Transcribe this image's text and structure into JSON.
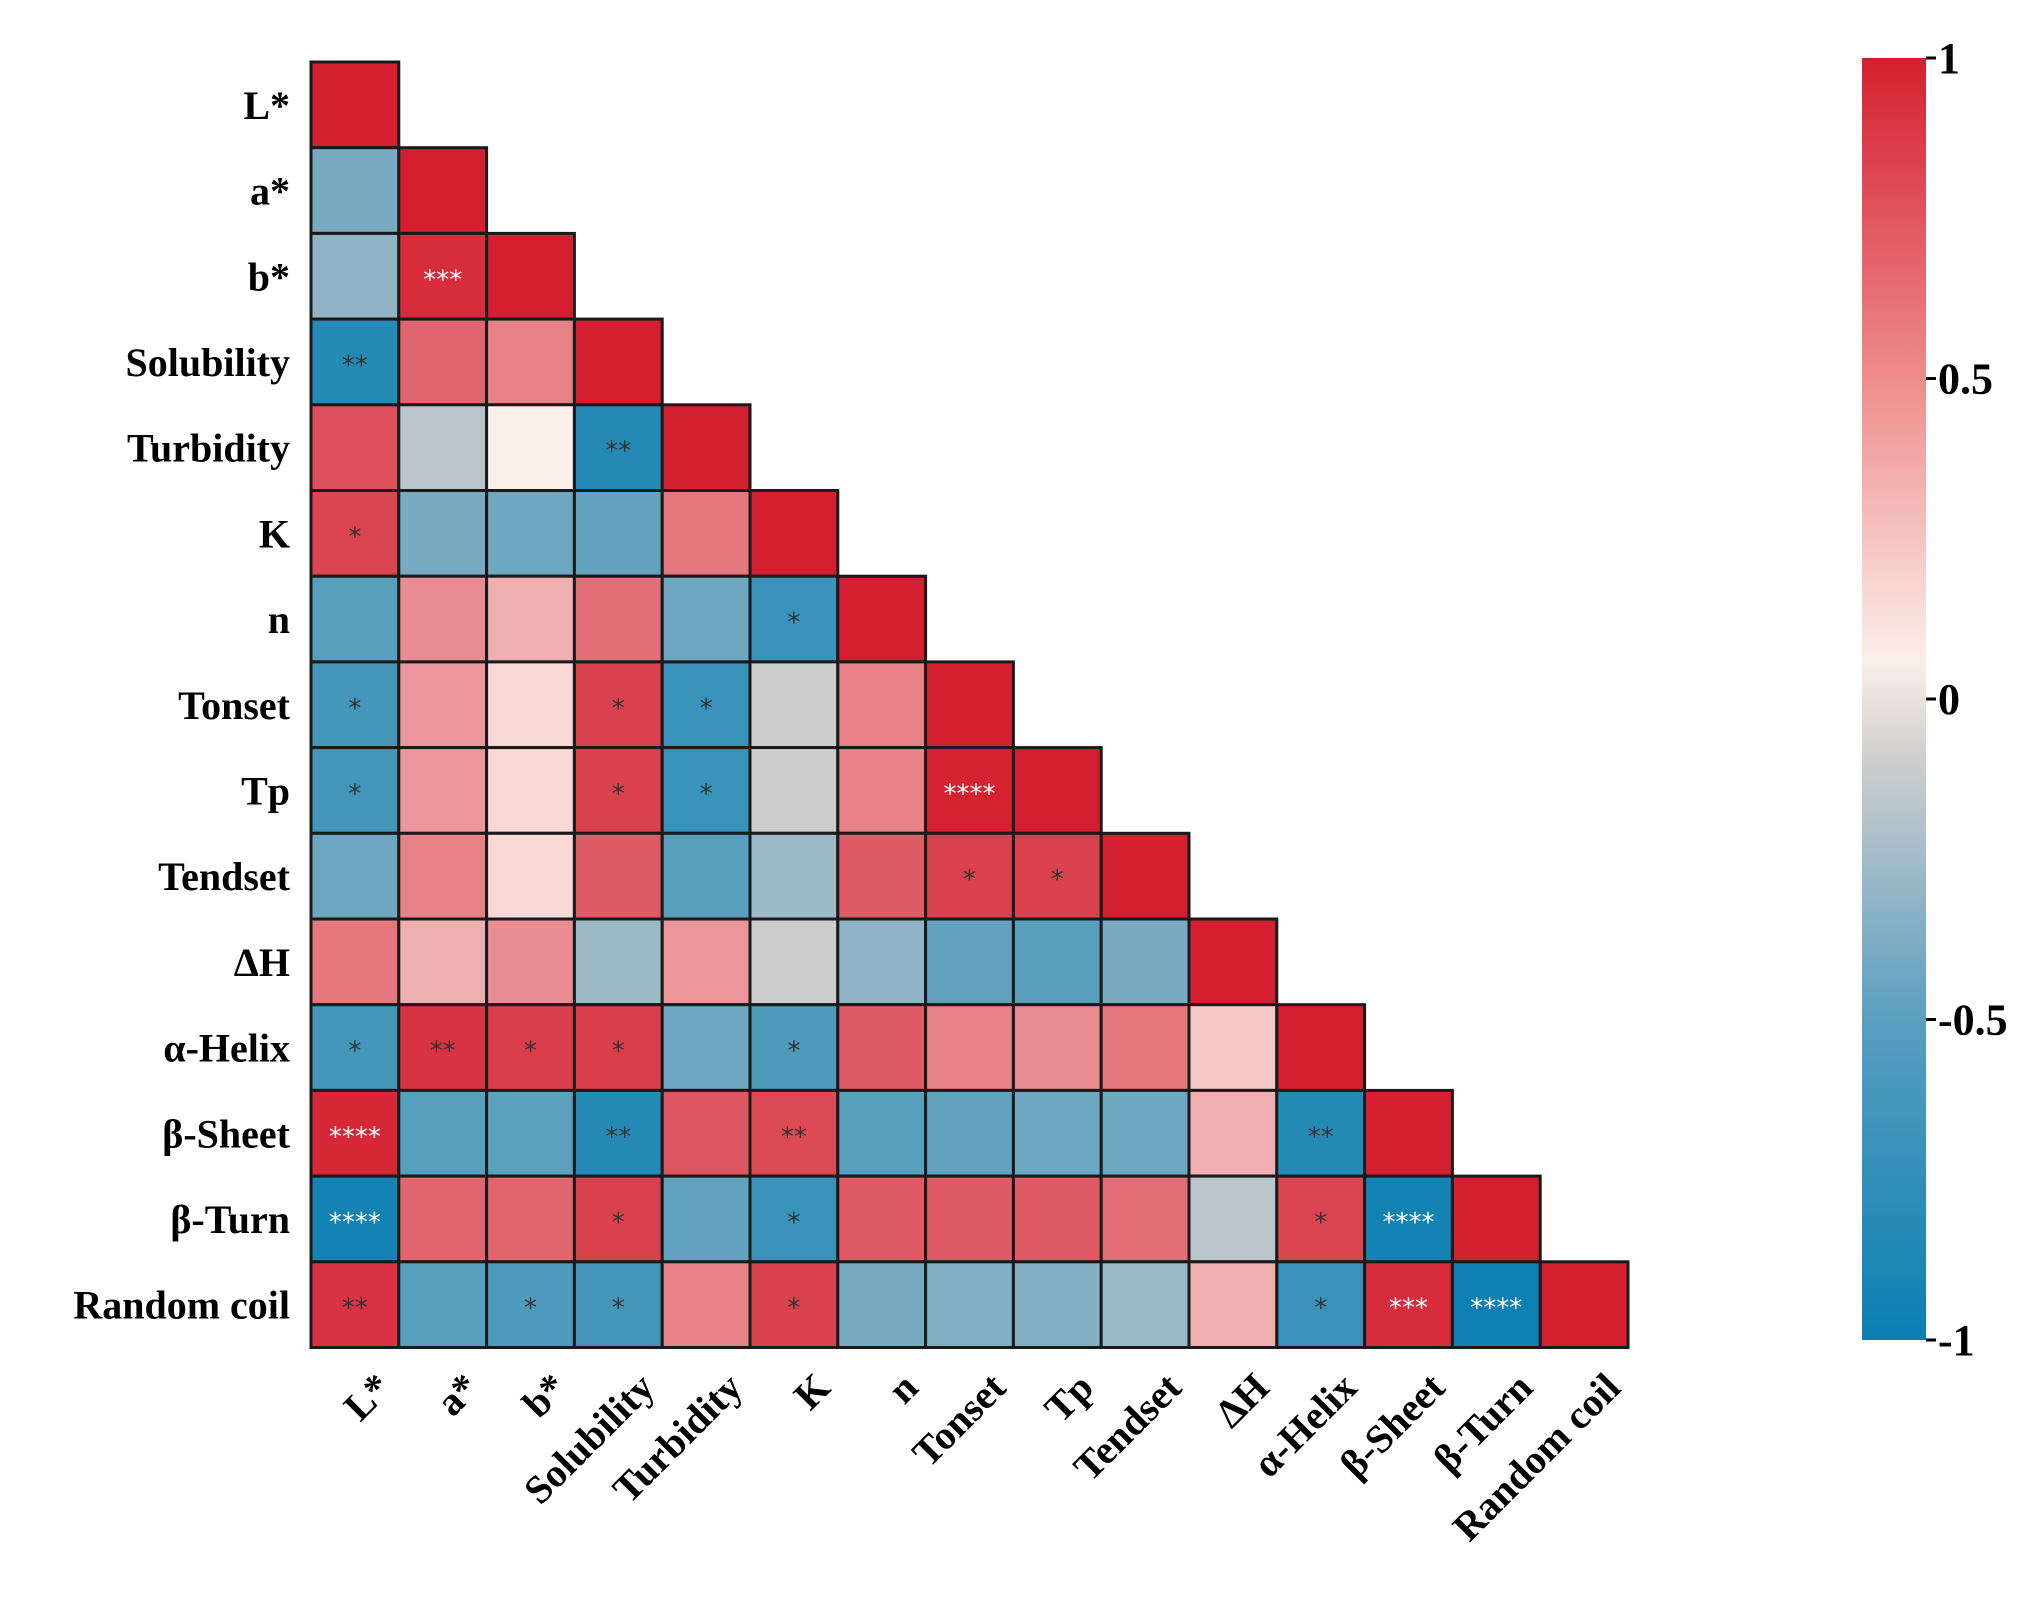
{
  "chart_data": {
    "type": "heatmap",
    "variables": [
      "L*",
      "a*",
      "b*",
      "Solubility",
      "Turbidity",
      "K",
      "n",
      "Tonset",
      "Tp",
      "Tendset",
      "ΔH",
      "α-Helix",
      "β-Sheet",
      "β-Turn",
      "Random coil"
    ],
    "values": [
      [
        1.0
      ],
      [
        -0.45,
        1.0
      ],
      [
        -0.35,
        0.92,
        1.0
      ],
      [
        -0.85,
        0.6,
        0.45,
        1.0
      ],
      [
        0.72,
        -0.2,
        0.05,
        -0.85,
        1.0
      ],
      [
        0.78,
        -0.45,
        -0.5,
        -0.55,
        0.5,
        1.0
      ],
      [
        -0.6,
        0.4,
        0.25,
        0.55,
        -0.5,
        -0.75,
        1.0
      ],
      [
        -0.7,
        0.35,
        0.1,
        0.8,
        -0.75,
        -0.15,
        0.45,
        1.0
      ],
      [
        -0.7,
        0.35,
        0.1,
        0.8,
        -0.75,
        -0.15,
        0.45,
        0.98,
        1.0
      ],
      [
        -0.5,
        0.45,
        0.1,
        0.65,
        -0.6,
        -0.3,
        0.65,
        0.8,
        0.8,
        1.0
      ],
      [
        0.5,
        0.25,
        0.4,
        -0.3,
        0.35,
        -0.15,
        -0.35,
        -0.55,
        -0.6,
        -0.45,
        1.0
      ],
      [
        -0.7,
        0.88,
        0.82,
        0.82,
        -0.5,
        -0.65,
        0.65,
        0.45,
        0.4,
        0.5,
        0.15,
        1.0
      ],
      [
        0.95,
        -0.6,
        -0.58,
        -0.85,
        0.68,
        0.75,
        -0.6,
        -0.55,
        -0.5,
        -0.5,
        0.25,
        -0.85,
        1.0
      ],
      [
        -0.95,
        0.6,
        0.6,
        0.8,
        -0.55,
        -0.75,
        0.65,
        0.65,
        0.65,
        0.55,
        -0.2,
        0.78,
        -0.95,
        1.0
      ],
      [
        0.88,
        -0.6,
        -0.65,
        -0.7,
        0.45,
        0.8,
        -0.45,
        -0.4,
        -0.4,
        -0.3,
        0.25,
        -0.75,
        0.92,
        -0.98,
        1.0
      ]
    ],
    "significance": [
      [
        ""
      ],
      [
        "",
        ""
      ],
      [
        "",
        "***",
        ""
      ],
      [
        "**",
        "",
        "",
        ""
      ],
      [
        "",
        "",
        "",
        "**",
        ""
      ],
      [
        "*",
        "",
        "",
        "",
        "",
        ""
      ],
      [
        "",
        "",
        "",
        "",
        "",
        "*",
        ""
      ],
      [
        "*",
        "",
        "",
        "*",
        "*",
        "",
        "",
        ""
      ],
      [
        "*",
        "",
        "",
        "*",
        "*",
        "",
        "",
        "****",
        ""
      ],
      [
        "",
        "",
        "",
        "",
        "",
        "",
        "",
        "*",
        "*",
        ""
      ],
      [
        "",
        "",
        "",
        "",
        "",
        "",
        "",
        "",
        "",
        "",
        ""
      ],
      [
        "*",
        "**",
        "*",
        "*",
        "",
        "*",
        "",
        "",
        "",
        "",
        "",
        ""
      ],
      [
        "****",
        "",
        "",
        "**",
        "",
        "**",
        "",
        "",
        "",
        "",
        "",
        "**",
        ""
      ],
      [
        "****",
        "",
        "",
        "*",
        "",
        "*",
        "",
        "",
        "",
        "",
        "",
        "*",
        "****",
        ""
      ],
      [
        "**",
        "",
        "*",
        "*",
        "",
        "*",
        "",
        "",
        "",
        "",
        "",
        "*",
        "***",
        "****",
        ""
      ]
    ],
    "colorbar": {
      "min": -1,
      "max": 1,
      "ticks": [
        1,
        0.5,
        0,
        -0.5,
        -1
      ],
      "tick_labels": [
        "1",
        "0.5",
        "0",
        "-0.5",
        "-1"
      ]
    },
    "colors": {
      "negative": "#0a7fb2",
      "neutral_low": "#cdcdcd",
      "neutral_high": "#fbefe9",
      "positive": "#d41f30",
      "sig_light": "#ffffff",
      "sig_dark": "#333333"
    },
    "title": "",
    "xlabel": "",
    "ylabel": ""
  }
}
